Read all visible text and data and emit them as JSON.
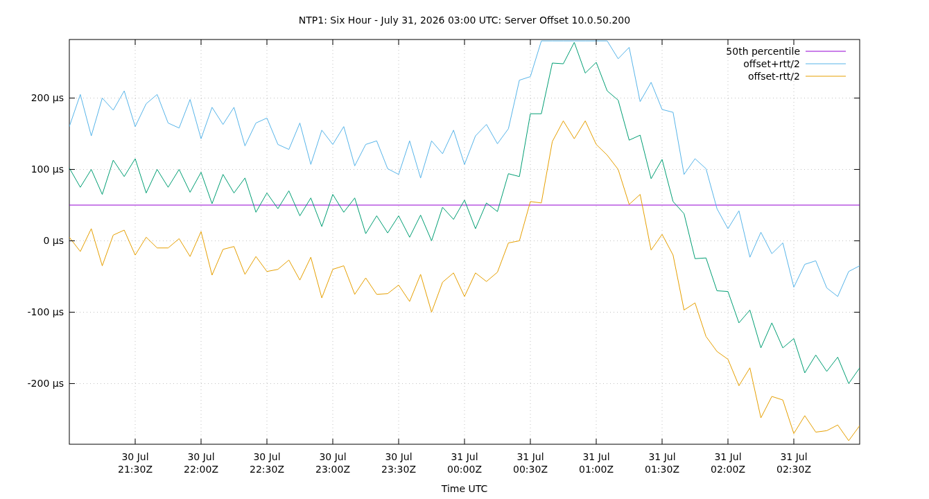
{
  "chart_data": {
    "type": "line",
    "title": "NTP1: Six Hour - July 31, 2026 03:00 UTC: Server Offset 10.0.50.200",
    "xlabel": "Time UTC",
    "x": [
      "2026-07-30T21:00",
      "2026-07-30T21:05",
      "2026-07-30T21:10",
      "2026-07-30T21:15",
      "2026-07-30T21:20",
      "2026-07-30T21:25",
      "2026-07-30T21:30",
      "2026-07-30T21:35",
      "2026-07-30T21:40",
      "2026-07-30T21:45",
      "2026-07-30T21:50",
      "2026-07-30T21:55",
      "2026-07-30T22:00",
      "2026-07-30T22:05",
      "2026-07-30T22:10",
      "2026-07-30T22:15",
      "2026-07-30T22:20",
      "2026-07-30T22:25",
      "2026-07-30T22:30",
      "2026-07-30T22:35",
      "2026-07-30T22:40",
      "2026-07-30T22:45",
      "2026-07-30T22:50",
      "2026-07-30T22:55",
      "2026-07-30T23:00",
      "2026-07-30T23:05",
      "2026-07-30T23:10",
      "2026-07-30T23:15",
      "2026-07-30T23:20",
      "2026-07-30T23:25",
      "2026-07-30T23:30",
      "2026-07-30T23:35",
      "2026-07-30T23:40",
      "2026-07-30T23:45",
      "2026-07-30T23:50",
      "2026-07-30T23:55",
      "2026-07-31T00:00",
      "2026-07-31T00:05",
      "2026-07-31T00:10",
      "2026-07-31T00:15",
      "2026-07-31T00:20",
      "2026-07-31T00:25",
      "2026-07-31T00:30",
      "2026-07-31T00:35",
      "2026-07-31T00:40",
      "2026-07-31T00:45",
      "2026-07-31T00:50",
      "2026-07-31T00:55",
      "2026-07-31T01:00",
      "2026-07-31T01:05",
      "2026-07-31T01:10",
      "2026-07-31T01:15",
      "2026-07-31T01:20",
      "2026-07-31T01:25",
      "2026-07-31T01:30",
      "2026-07-31T01:35",
      "2026-07-31T01:40",
      "2026-07-31T01:45",
      "2026-07-31T01:50",
      "2026-07-31T01:55",
      "2026-07-31T02:00",
      "2026-07-31T02:05",
      "2026-07-31T02:10",
      "2026-07-31T02:15",
      "2026-07-31T02:20",
      "2026-07-31T02:25",
      "2026-07-31T02:30",
      "2026-07-31T02:35",
      "2026-07-31T02:40",
      "2026-07-31T02:45",
      "2026-07-31T02:50",
      "2026-07-31T02:55",
      "2026-07-31T03:00"
    ],
    "series": [
      {
        "name": "50th percentile",
        "color": "#9400d3",
        "x": [
          "2026-07-30T21:00",
          "2026-07-31T03:00"
        ],
        "values": [
          50,
          50
        ]
      },
      {
        "color": "#009e73",
        "values": [
          102,
          75,
          100,
          65,
          113,
          90,
          115,
          67,
          100,
          75,
          100,
          68,
          96,
          52,
          93,
          67,
          88,
          40,
          67,
          45,
          70,
          35,
          60,
          20,
          65,
          40,
          60,
          10,
          35,
          11,
          35,
          5,
          36,
          0,
          47,
          30,
          57,
          17,
          53,
          41,
          94,
          90,
          178,
          178,
          249,
          248,
          278,
          235,
          250,
          210,
          197,
          141,
          148,
          87,
          114,
          55,
          38,
          -25,
          -24,
          -70,
          -71,
          -115,
          -97,
          -150,
          -115,
          -150,
          -137,
          -185,
          -160,
          -183,
          -163,
          -200,
          -178
        ]
      },
      {
        "name": "offset+rtt/2",
        "color": "#56b4e9",
        "values": [
          160,
          205,
          147,
          200,
          183,
          210,
          160,
          192,
          205,
          165,
          158,
          198,
          143,
          187,
          163,
          187,
          133,
          165,
          172,
          135,
          128,
          165,
          107,
          155,
          135,
          160,
          105,
          135,
          140,
          101,
          93,
          140,
          88,
          140,
          122,
          155,
          107,
          147,
          163,
          136,
          157,
          225,
          230,
          280,
          280,
          280,
          280,
          280,
          280,
          280,
          255,
          271,
          195,
          222,
          184,
          180,
          93,
          115,
          101,
          45,
          17,
          42,
          -23,
          12,
          -18,
          -3,
          -65,
          -33,
          -28,
          -66,
          -78,
          -43,
          -35
        ]
      },
      {
        "name": "offset-rtt/2",
        "color": "#e69f00",
        "values": [
          5,
          -15,
          17,
          -35,
          8,
          15,
          -20,
          5,
          -10,
          -10,
          3,
          -22,
          13,
          -48,
          -12,
          -8,
          -47,
          -22,
          -43,
          -40,
          -27,
          -55,
          -23,
          -80,
          -40,
          -35,
          -75,
          -52,
          -75,
          -74,
          -62,
          -85,
          -47,
          -100,
          -58,
          -45,
          -78,
          -45,
          -57,
          -44,
          -3,
          0,
          55,
          53,
          139,
          168,
          143,
          168,
          135,
          120,
          100,
          51,
          65,
          -13,
          9,
          -20,
          -97,
          -87,
          -134,
          -155,
          -166,
          -203,
          -178,
          -248,
          -218,
          -223,
          -270,
          -245,
          -268,
          -266,
          -258,
          -280,
          -259
        ]
      }
    ],
    "xlim": [
      "2026-07-30T21:00",
      "2026-07-31T03:00"
    ],
    "xticks": [
      {
        "value": "2026-07-30T21:30",
        "label": "30 Jul\n21:30Z"
      },
      {
        "value": "2026-07-30T22:00",
        "label": "30 Jul\n22:00Z"
      },
      {
        "value": "2026-07-30T22:30",
        "label": "30 Jul\n22:30Z"
      },
      {
        "value": "2026-07-30T23:00",
        "label": "30 Jul\n23:00Z"
      },
      {
        "value": "2026-07-30T23:30",
        "label": "30 Jul\n23:30Z"
      },
      {
        "value": "2026-07-31T00:00",
        "label": "31 Jul\n00:00Z"
      },
      {
        "value": "2026-07-31T00:30",
        "label": "31 Jul\n00:30Z"
      },
      {
        "value": "2026-07-31T01:00",
        "label": "31 Jul\n01:00Z"
      },
      {
        "value": "2026-07-31T01:30",
        "label": "31 Jul\n01:30Z"
      },
      {
        "value": "2026-07-31T02:00",
        "label": "31 Jul\n02:00Z"
      },
      {
        "value": "2026-07-31T02:30",
        "label": "31 Jul\n02:30Z"
      }
    ],
    "ylim": [
      -285,
      282
    ],
    "yticks": [
      {
        "value": -200,
        "label": "-200 µs"
      },
      {
        "value": -100,
        "label": "-100 µs"
      },
      {
        "value": 0,
        "label": "0 µs"
      },
      {
        "value": 100,
        "label": "100 µs"
      },
      {
        "value": 200,
        "label": "200 µs"
      }
    ],
    "grid": true,
    "legend": "top right"
  }
}
